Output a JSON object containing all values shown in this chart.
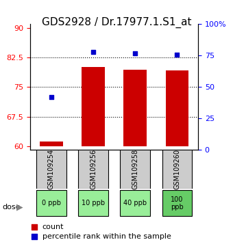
{
  "title": "GDS2928 / Dr.17977.1.S1_at",
  "samples": [
    "GSM109254",
    "GSM109256",
    "GSM109258",
    "GSM109260"
  ],
  "doses": [
    "0 ppb",
    "10 ppb",
    "40 ppb",
    "100\nppb"
  ],
  "bar_bottoms": [
    60,
    60,
    60,
    60
  ],
  "bar_tops": [
    61.2,
    80.2,
    79.5,
    79.3
  ],
  "percentile_vals": [
    42,
    78,
    77,
    76
  ],
  "ylim_left": [
    59,
    91
  ],
  "ylim_right": [
    0,
    100
  ],
  "yticks_left": [
    60,
    67.5,
    75,
    82.5,
    90
  ],
  "yticks_right": [
    0,
    25,
    50,
    75,
    100
  ],
  "ytick_labels_left": [
    "60",
    "67.5",
    "75",
    "82.5",
    "90"
  ],
  "ytick_labels_right": [
    "0",
    "25",
    "50",
    "75",
    "100%"
  ],
  "bar_color": "#cc0000",
  "dot_color": "#0000cc",
  "bar_width": 0.55,
  "sample_box_color": "#cccccc",
  "dose_box_color": "#99ee99",
  "dose_box_last_color": "#66cc66",
  "grid_color": "#000000",
  "title_fontsize": 11,
  "tick_fontsize": 8,
  "legend_fontsize": 8,
  "dot_size": 25
}
